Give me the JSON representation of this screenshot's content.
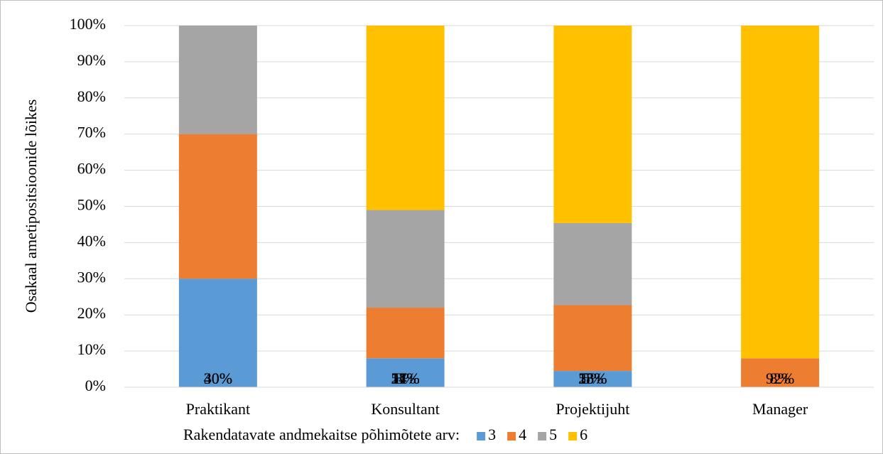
{
  "chart_data": {
    "type": "stacked_bar",
    "y_label": "Osakaal ametipositsioonide lõikes",
    "legend_title": "Rakendatavate andmekaitse põhimõtete arv:",
    "legend_position": "bottom",
    "categories": [
      "Praktikant",
      "Konsultant",
      "Projektijuht",
      "Manager"
    ],
    "series": [
      {
        "name": "3",
        "color": "#5b9bd5",
        "values": [
          30,
          8,
          4.5,
          0
        ],
        "value_labels": [
          "30%",
          "8%",
          "5%",
          null
        ]
      },
      {
        "name": "4",
        "color": "#ed7d31",
        "values": [
          40,
          14,
          18.2,
          8
        ],
        "value_labels": [
          "40%",
          "14%",
          "18%",
          "8%"
        ]
      },
      {
        "name": "5",
        "color": "#a5a5a5",
        "values": [
          30,
          27,
          22.7,
          0
        ],
        "value_labels": [
          "30%",
          "27%",
          "23%",
          null
        ]
      },
      {
        "name": "6",
        "color": "#ffc000",
        "values": [
          0,
          51,
          54.6,
          92
        ],
        "value_labels": [
          null,
          "51%",
          "55%",
          "92%"
        ]
      }
    ],
    "ylim": [
      0,
      100
    ],
    "yticks": [
      {
        "value": 0,
        "label": "0%"
      },
      {
        "value": 10,
        "label": "10%"
      },
      {
        "value": 20,
        "label": "20%"
      },
      {
        "value": 30,
        "label": "30%"
      },
      {
        "value": 40,
        "label": "40%"
      },
      {
        "value": 50,
        "label": "50%"
      },
      {
        "value": 60,
        "label": "60%"
      },
      {
        "value": 70,
        "label": "70%"
      },
      {
        "value": 80,
        "label": "80%"
      },
      {
        "value": 90,
        "label": "90%"
      },
      {
        "value": 100,
        "label": "100%"
      }
    ],
    "grid": true
  }
}
